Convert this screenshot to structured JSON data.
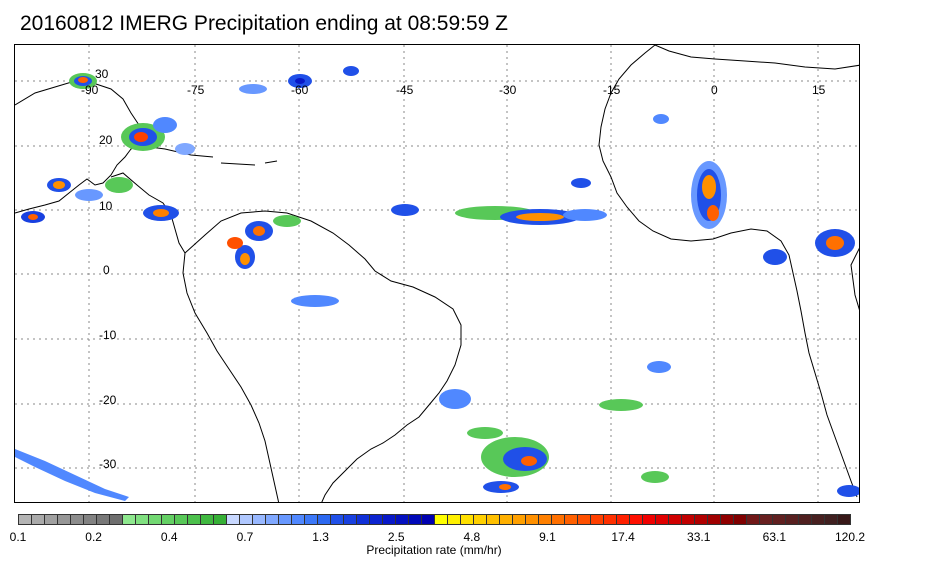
{
  "title": "20160812 IMERG Precipitation ending at 08:59:59 Z",
  "map": {
    "lat_labels": [
      "30",
      "20",
      "10",
      "0",
      "-10",
      "-20",
      "-30"
    ],
    "lon_labels": [
      "-90",
      "-75",
      "-60",
      "-45",
      "-30",
      "-15",
      "0",
      "15"
    ],
    "coastline_color": "#000000",
    "grid_style": "dotted gray"
  },
  "colorbar": {
    "tick_labels": [
      "0.1",
      "0.2",
      "0.4",
      "0.7",
      "1.3",
      "2.5",
      "4.8",
      "9.1",
      "17.4",
      "33.1",
      "63.1",
      "120.2"
    ],
    "label": "Precipitation rate (mm/hr)",
    "colors": [
      "#b4b4b4",
      "#aaaaaa",
      "#a0a0a0",
      "#969696",
      "#8c8c8c",
      "#828282",
      "#787878",
      "#6e6e6e",
      "#8ee88e",
      "#80e080",
      "#72d872",
      "#64d064",
      "#58c858",
      "#4cc04c",
      "#40b840",
      "#36b036",
      "#c8d8ff",
      "#b0c8ff",
      "#98b8ff",
      "#80a8ff",
      "#6898ff",
      "#5088ff",
      "#3c78f8",
      "#2c68f0",
      "#2050e8",
      "#1840e0",
      "#1030d8",
      "#0c24d0",
      "#0818c8",
      "#0410c0",
      "#0008b8",
      "#0000b0",
      "#ffff00",
      "#fff000",
      "#ffe000",
      "#ffd000",
      "#ffc000",
      "#ffb000",
      "#ffa000",
      "#ff9000",
      "#ff8000",
      "#ff7000",
      "#ff6000",
      "#ff5000",
      "#ff4000",
      "#ff3000",
      "#ff2000",
      "#ff1000",
      "#f00000",
      "#e00000",
      "#d00000",
      "#c00000",
      "#b00000",
      "#a00000",
      "#900000",
      "#800000",
      "#701818",
      "#682020",
      "#602020",
      "#582020",
      "#502020",
      "#482020",
      "#402020",
      "#381818"
    ]
  }
}
